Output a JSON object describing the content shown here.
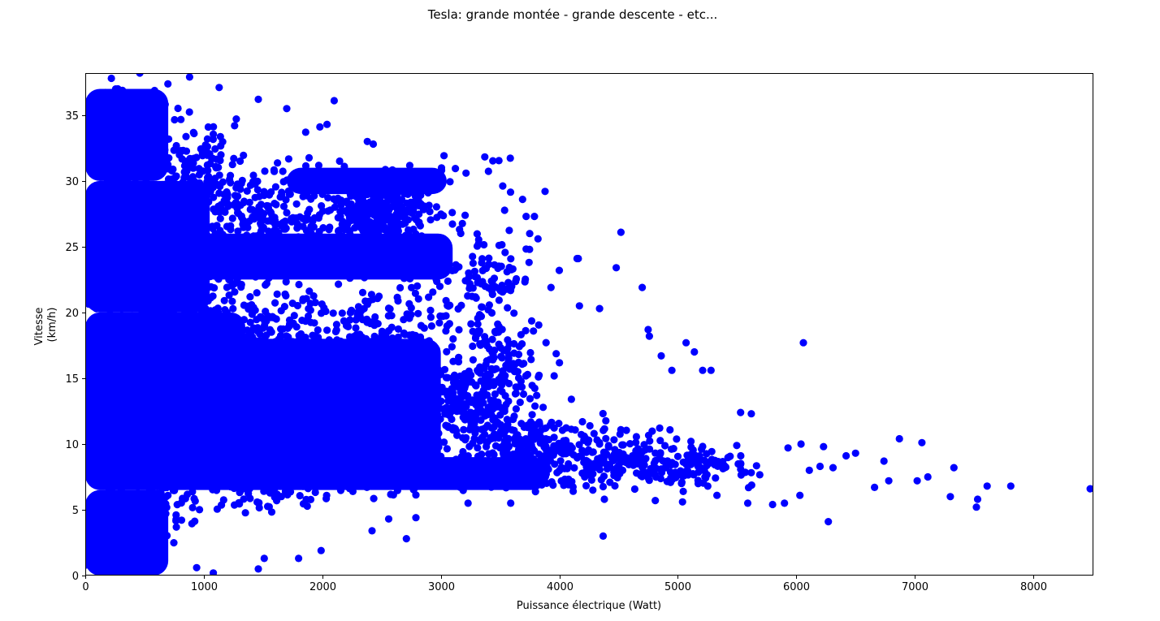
{
  "chart_data": {
    "type": "scatter",
    "title": "Tesla: grande montée - grande descente - etc...",
    "xlabel": "Puissance électrique (Watt)",
    "ylabel_lines": [
      "Vitesse",
      "(km/h)"
    ],
    "xlim": [
      0,
      8500
    ],
    "ylim": [
      0,
      38.2
    ],
    "xticks": [
      0,
      1000,
      2000,
      3000,
      4000,
      5000,
      6000,
      7000,
      8000
    ],
    "yticks": [
      0,
      5,
      10,
      15,
      20,
      25,
      30,
      35
    ],
    "grid": false,
    "marker_color": "#0000ff",
    "series": [
      {
        "values": [
          [
            6060,
            17.7
          ],
          [
            4520,
            26.1
          ],
          [
            4480,
            23.4
          ],
          [
            4700,
            21.9
          ],
          [
            4160,
            24.1
          ],
          [
            3880,
            29.2
          ],
          [
            2100,
            36.1
          ],
          [
            1460,
            36.2
          ],
          [
            1130,
            37.1
          ],
          [
            880,
            37.9
          ],
          [
            460,
            38.2
          ],
          [
            220,
            37.8
          ],
          [
            2380,
            33.0
          ],
          [
            2430,
            32.8
          ],
          [
            2040,
            34.3
          ],
          [
            1980,
            34.1
          ],
          [
            1860,
            33.7
          ],
          [
            1700,
            35.5
          ],
          [
            6870,
            10.4
          ],
          [
            7060,
            10.1
          ],
          [
            6500,
            9.3
          ],
          [
            6420,
            9.1
          ],
          [
            6740,
            8.7
          ],
          [
            7330,
            8.2
          ],
          [
            7110,
            7.5
          ],
          [
            6780,
            7.2
          ],
          [
            7020,
            7.2
          ],
          [
            6660,
            6.7
          ],
          [
            7610,
            6.8
          ],
          [
            7810,
            6.8
          ],
          [
            7300,
            6.0
          ],
          [
            7530,
            5.8
          ],
          [
            7520,
            5.2
          ],
          [
            8480,
            6.6
          ],
          [
            6270,
            4.1
          ],
          [
            4370,
            3.0
          ],
          [
            2710,
            2.8
          ],
          [
            2420,
            3.4
          ],
          [
            1990,
            1.9
          ],
          [
            1800,
            1.3
          ],
          [
            1510,
            1.3
          ],
          [
            1460,
            0.5
          ],
          [
            1080,
            0.2
          ],
          [
            940,
            0.6
          ],
          [
            2790,
            4.4
          ],
          [
            2560,
            4.3
          ],
          [
            3230,
            5.5
          ],
          [
            3590,
            5.5
          ],
          [
            4150,
            24.1
          ],
          [
            3750,
            26.0
          ],
          [
            3820,
            25.6
          ],
          [
            3690,
            28.6
          ],
          [
            3720,
            27.3
          ],
          [
            3790,
            27.3
          ],
          [
            4000,
            23.2
          ],
          [
            3930,
            21.9
          ],
          [
            4170,
            20.5
          ],
          [
            4340,
            20.3
          ],
          [
            5070,
            17.7
          ],
          [
            4750,
            18.7
          ],
          [
            4760,
            18.2
          ],
          [
            4860,
            16.7
          ],
          [
            5280,
            15.6
          ],
          [
            5140,
            17.0
          ],
          [
            5210,
            15.6
          ],
          [
            4950,
            15.6
          ],
          [
            5620,
            12.3
          ],
          [
            5530,
            12.4
          ],
          [
            5930,
            9.7
          ],
          [
            6040,
            10.0
          ],
          [
            6230,
            9.8
          ],
          [
            6310,
            8.2
          ],
          [
            6110,
            8.0
          ],
          [
            6200,
            8.3
          ],
          [
            5800,
            5.4
          ],
          [
            5900,
            5.5
          ],
          [
            6030,
            6.1
          ],
          [
            5590,
            5.5
          ],
          [
            5330,
            6.1
          ],
          [
            5040,
            5.6
          ],
          [
            4810,
            5.7
          ],
          [
            4380,
            5.8
          ]
        ]
      }
    ]
  }
}
